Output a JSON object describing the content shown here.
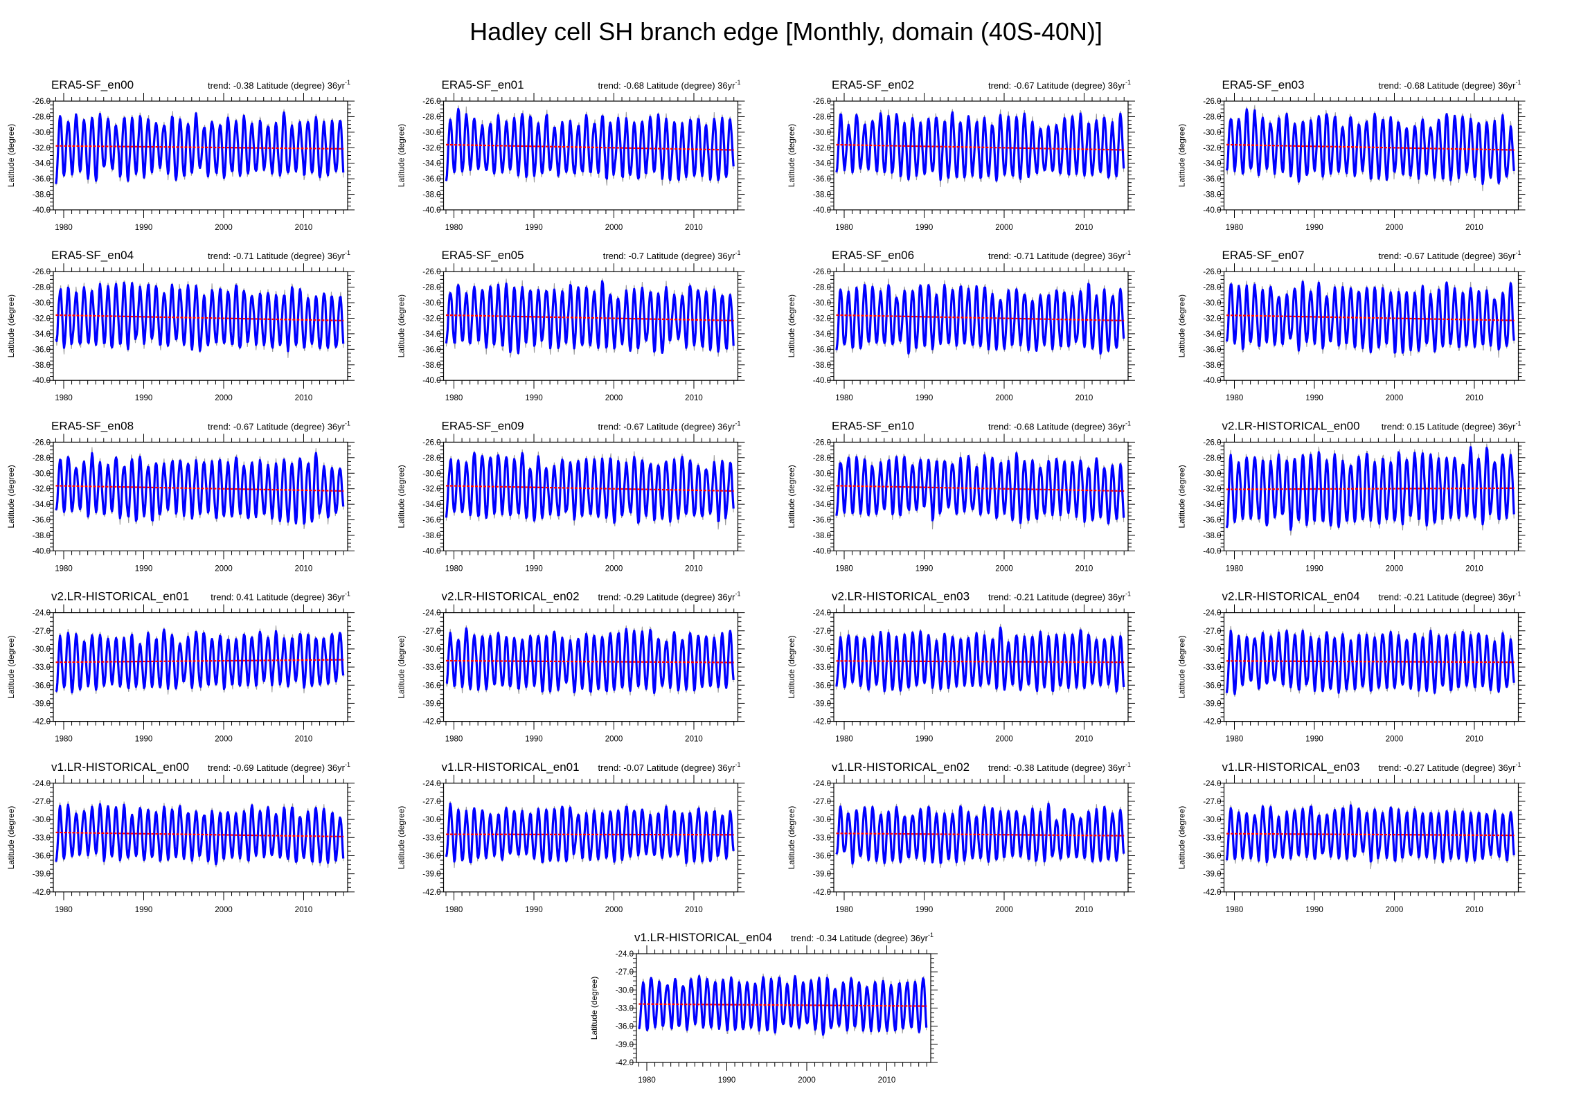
{
  "chart_data": {
    "type": "line",
    "title": "Hadley cell SH branch edge [Monthly, domain (40S-40N)]",
    "ylabel": "Latitude (degree)",
    "trend_unit_superscript": "-1",
    "xlim": [
      1978.7,
      2015.5
    ],
    "x_period": [
      1979,
      2014
    ],
    "xticks": [
      "1980",
      "1990",
      "2000",
      "2010"
    ],
    "series_styles": {
      "raw": "#999999",
      "smoothed": "#0000ff",
      "trend": "#ff0000"
    },
    "grid": false,
    "panels": [
      {
        "name": "ERA5-SF_en00",
        "trend": -0.38,
        "trend_label": "trend: -0.38 Latitude (degree) 36yr",
        "mean": -31.95,
        "amplitude": 3.8,
        "seed": 11,
        "ylim": [
          -40,
          -26
        ],
        "yticks": [
          "-26.0",
          "-28.0",
          "-30.0",
          "-32.0",
          "-34.0",
          "-36.0",
          "-38.0",
          "-40.0"
        ]
      },
      {
        "name": "ERA5-SF_en01",
        "trend": -0.68,
        "trend_label": "trend: -0.68 Latitude (degree) 36yr",
        "mean": -31.95,
        "amplitude": 3.8,
        "seed": 12,
        "ylim": [
          -40,
          -26
        ],
        "yticks": [
          "-26.0",
          "-28.0",
          "-30.0",
          "-32.0",
          "-34.0",
          "-36.0",
          "-38.0",
          "-40.0"
        ]
      },
      {
        "name": "ERA5-SF_en02",
        "trend": -0.67,
        "trend_label": "trend: -0.67 Latitude (degree) 36yr",
        "mean": -31.95,
        "amplitude": 3.8,
        "seed": 13,
        "ylim": [
          -40,
          -26
        ],
        "yticks": [
          "-26.0",
          "-28.0",
          "-30.0",
          "-32.0",
          "-34.0",
          "-36.0",
          "-38.0",
          "-40.0"
        ]
      },
      {
        "name": "ERA5-SF_en03",
        "trend": -0.68,
        "trend_label": "trend: -0.68 Latitude (degree) 36yr",
        "mean": -31.95,
        "amplitude": 3.8,
        "seed": 14,
        "ylim": [
          -40,
          -26
        ],
        "yticks": [
          "-26.0",
          "-28.0",
          "-30.0",
          "-32.0",
          "-34.0",
          "-36.0",
          "-38.0",
          "-40.0"
        ]
      },
      {
        "name": "ERA5-SF_en04",
        "trend": -0.71,
        "trend_label": "trend: -0.71 Latitude (degree) 36yr",
        "mean": -31.95,
        "amplitude": 3.8,
        "seed": 15,
        "ylim": [
          -40,
          -26
        ],
        "yticks": [
          "-26.0",
          "-28.0",
          "-30.0",
          "-32.0",
          "-34.0",
          "-36.0",
          "-38.0",
          "-40.0"
        ]
      },
      {
        "name": "ERA5-SF_en05",
        "trend": -0.7,
        "trend_label": "trend: -0.7 Latitude (degree) 36yr",
        "mean": -31.95,
        "amplitude": 3.8,
        "seed": 16,
        "ylim": [
          -40,
          -26
        ],
        "yticks": [
          "-26.0",
          "-28.0",
          "-30.0",
          "-32.0",
          "-34.0",
          "-36.0",
          "-38.0",
          "-40.0"
        ]
      },
      {
        "name": "ERA5-SF_en06",
        "trend": -0.71,
        "trend_label": "trend: -0.71 Latitude (degree) 36yr",
        "mean": -31.95,
        "amplitude": 3.8,
        "seed": 17,
        "ylim": [
          -40,
          -26
        ],
        "yticks": [
          "-26.0",
          "-28.0",
          "-30.0",
          "-32.0",
          "-34.0",
          "-36.0",
          "-38.0",
          "-40.0"
        ]
      },
      {
        "name": "ERA5-SF_en07",
        "trend": -0.67,
        "trend_label": "trend: -0.67 Latitude (degree) 36yr",
        "mean": -31.95,
        "amplitude": 3.8,
        "seed": 18,
        "ylim": [
          -40,
          -26
        ],
        "yticks": [
          "-26.0",
          "-28.0",
          "-30.0",
          "-32.0",
          "-34.0",
          "-36.0",
          "-38.0",
          "-40.0"
        ]
      },
      {
        "name": "ERA5-SF_en08",
        "trend": -0.67,
        "trend_label": "trend: -0.67 Latitude (degree) 36yr",
        "mean": -31.95,
        "amplitude": 3.8,
        "seed": 19,
        "ylim": [
          -40,
          -26
        ],
        "yticks": [
          "-26.0",
          "-28.0",
          "-30.0",
          "-32.0",
          "-34.0",
          "-36.0",
          "-38.0",
          "-40.0"
        ]
      },
      {
        "name": "ERA5-SF_en09",
        "trend": -0.67,
        "trend_label": "trend: -0.67 Latitude (degree) 36yr",
        "mean": -31.95,
        "amplitude": 3.8,
        "seed": 20,
        "ylim": [
          -40,
          -26
        ],
        "yticks": [
          "-26.0",
          "-28.0",
          "-30.0",
          "-32.0",
          "-34.0",
          "-36.0",
          "-38.0",
          "-40.0"
        ]
      },
      {
        "name": "ERA5-SF_en10",
        "trend": -0.68,
        "trend_label": "trend: -0.68 Latitude (degree) 36yr",
        "mean": -31.95,
        "amplitude": 3.8,
        "seed": 21,
        "ylim": [
          -40,
          -26
        ],
        "yticks": [
          "-26.0",
          "-28.0",
          "-30.0",
          "-32.0",
          "-34.0",
          "-36.0",
          "-38.0",
          "-40.0"
        ]
      },
      {
        "name": "v2.LR-HISTORICAL_en00",
        "trend": 0.15,
        "trend_label": "trend: 0.15 Latitude (degree) 36yr",
        "mean": -32.0,
        "amplitude": 4.4,
        "seed": 31,
        "ylim": [
          -40,
          -26
        ],
        "yticks": [
          "-26.0",
          "-28.0",
          "-30.0",
          "-32.0",
          "-34.0",
          "-36.0",
          "-38.0",
          "-40.0"
        ]
      },
      {
        "name": "v2.LR-HISTORICAL_en01",
        "trend": 0.41,
        "trend_label": "trend: 0.41 Latitude (degree) 36yr",
        "mean": -32.0,
        "amplitude": 4.6,
        "seed": 32,
        "ylim": [
          -42,
          -24
        ],
        "yticks": [
          "-24.0",
          "-27.0",
          "-30.0",
          "-33.0",
          "-36.0",
          "-39.0",
          "-42.0"
        ]
      },
      {
        "name": "v2.LR-HISTORICAL_en02",
        "trend": -0.29,
        "trend_label": "trend: -0.29 Latitude (degree) 36yr",
        "mean": -32.1,
        "amplitude": 4.6,
        "seed": 33,
        "ylim": [
          -42,
          -24
        ],
        "yticks": [
          "-24.0",
          "-27.0",
          "-30.0",
          "-33.0",
          "-36.0",
          "-39.0",
          "-42.0"
        ]
      },
      {
        "name": "v2.LR-HISTORICAL_en03",
        "trend": -0.21,
        "trend_label": "trend: -0.21 Latitude (degree) 36yr",
        "mean": -32.1,
        "amplitude": 4.6,
        "seed": 34,
        "ylim": [
          -42,
          -24
        ],
        "yticks": [
          "-24.0",
          "-27.0",
          "-30.0",
          "-33.0",
          "-36.0",
          "-39.0",
          "-42.0"
        ]
      },
      {
        "name": "v2.LR-HISTORICAL_en04",
        "trend": -0.21,
        "trend_label": "trend: -0.21 Latitude (degree) 36yr",
        "mean": -32.1,
        "amplitude": 4.6,
        "seed": 35,
        "ylim": [
          -42,
          -24
        ],
        "yticks": [
          "-24.0",
          "-27.0",
          "-30.0",
          "-33.0",
          "-36.0",
          "-39.0",
          "-42.0"
        ]
      },
      {
        "name": "v1.LR-HISTORICAL_en00",
        "trend": -0.69,
        "trend_label": "trend: -0.69 Latitude (degree) 36yr",
        "mean": -32.5,
        "amplitude": 4.2,
        "seed": 41,
        "ylim": [
          -42,
          -24
        ],
        "yticks": [
          "-24.0",
          "-27.0",
          "-30.0",
          "-33.0",
          "-36.0",
          "-39.0",
          "-42.0"
        ]
      },
      {
        "name": "v1.LR-HISTORICAL_en01",
        "trend": -0.07,
        "trend_label": "trend: -0.07 Latitude (degree) 36yr",
        "mean": -32.5,
        "amplitude": 4.2,
        "seed": 42,
        "ylim": [
          -42,
          -24
        ],
        "yticks": [
          "-24.0",
          "-27.0",
          "-30.0",
          "-33.0",
          "-36.0",
          "-39.0",
          "-42.0"
        ]
      },
      {
        "name": "v1.LR-HISTORICAL_en02",
        "trend": -0.38,
        "trend_label": "trend: -0.38 Latitude (degree) 36yr",
        "mean": -32.5,
        "amplitude": 4.2,
        "seed": 43,
        "ylim": [
          -42,
          -24
        ],
        "yticks": [
          "-24.0",
          "-27.0",
          "-30.0",
          "-33.0",
          "-36.0",
          "-39.0",
          "-42.0"
        ]
      },
      {
        "name": "v1.LR-HISTORICAL_en03",
        "trend": -0.27,
        "trend_label": "trend: -0.27 Latitude (degree) 36yr",
        "mean": -32.5,
        "amplitude": 4.2,
        "seed": 44,
        "ylim": [
          -42,
          -24
        ],
        "yticks": [
          "-24.0",
          "-27.0",
          "-30.0",
          "-33.0",
          "-36.0",
          "-39.0",
          "-42.0"
        ]
      },
      {
        "name": "v1.LR-HISTORICAL_en04",
        "trend": -0.34,
        "trend_label": "trend: -0.34 Latitude (degree) 36yr",
        "mean": -32.5,
        "amplitude": 4.2,
        "seed": 45,
        "ylim": [
          -42,
          -24
        ],
        "yticks": [
          "-24.0",
          "-27.0",
          "-30.0",
          "-33.0",
          "-36.0",
          "-39.0",
          "-42.0"
        ]
      }
    ]
  }
}
